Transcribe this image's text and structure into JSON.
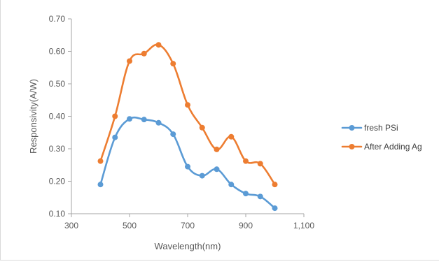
{
  "chart_data": {
    "type": "line",
    "smooth": true,
    "xlabel": "Wavelength(nm)",
    "ylabel": "Responsivity(A/W)",
    "xlim": [
      300,
      1100
    ],
    "ylim": [
      0.1,
      0.7
    ],
    "xticks": [
      300,
      500,
      700,
      900,
      1100
    ],
    "xtick_labels": [
      "300",
      "500",
      "700",
      "900",
      "1,100"
    ],
    "yticks": [
      0.1,
      0.2,
      0.3,
      0.4,
      0.5,
      0.6,
      0.7
    ],
    "ytick_labels": [
      "0.10",
      "0.20",
      "0.30",
      "0.40",
      "0.50",
      "0.60",
      "0.70"
    ],
    "grid": false,
    "legend_position": "right",
    "x": [
      400,
      450,
      500,
      550,
      600,
      650,
      700,
      750,
      800,
      850,
      900,
      950,
      1000
    ],
    "series": [
      {
        "name": "fresh PSi",
        "color": "#5b9bd5",
        "values": [
          0.19,
          0.335,
          0.392,
          0.39,
          0.38,
          0.345,
          0.245,
          0.217,
          0.237,
          0.19,
          0.162,
          0.153,
          0.117
        ]
      },
      {
        "name": "After Adding Ag",
        "color": "#ed7d31",
        "values": [
          0.262,
          0.4,
          0.57,
          0.593,
          0.62,
          0.562,
          0.435,
          0.365,
          0.298,
          0.337,
          0.262,
          0.254,
          0.19
        ]
      }
    ]
  }
}
